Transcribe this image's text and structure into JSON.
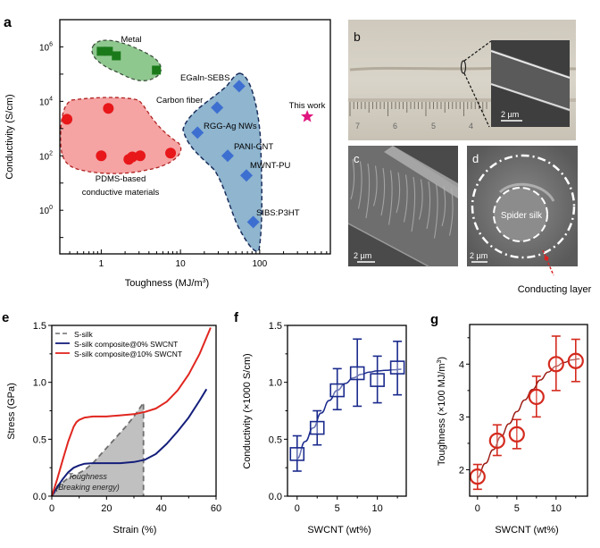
{
  "panels": {
    "a": {
      "label": "a"
    },
    "b": {
      "label": "b",
      "scale_bar": "2 µm",
      "ruler_numbers": [
        "7",
        "6",
        "5",
        "4"
      ]
    },
    "c": {
      "label": "c",
      "scale_bar": "2 µm"
    },
    "d": {
      "label": "d",
      "scale_bar": "2 µm",
      "core_label": "Spider silk",
      "callout": "Conducting layer"
    },
    "e": {
      "label": "e"
    },
    "f": {
      "label": "f"
    },
    "g": {
      "label": "g"
    }
  },
  "colors": {
    "metal": "#1a7a1a",
    "metal_fill": "#8fc88f",
    "pdms": "#e8171a",
    "pdms_fill": "#f5a3a3",
    "fiber": "#3d6fd1",
    "fiber_fill": "#8fb5cf",
    "fiber_border": "#1b2f5c",
    "star": "#e0157f",
    "s_silk": "#6e6e6e",
    "zero_swcnt": "#141e7a",
    "ten_swcnt": "#e0261f",
    "f_series": "#1a2a8c",
    "g_series": "#d42a1e",
    "toughness_fill": "#c0c0c0"
  },
  "chart_data": [
    {
      "id": "a",
      "type": "scatter",
      "xlabel": "Toughness (MJ/m3)",
      "ylabel": "Conductivity (S/cm)",
      "xscale": "log",
      "yscale": "log",
      "xlim": [
        0.3,
        780
      ],
      "ylim": [
        0.025,
        10000000.0
      ],
      "xticks": [
        1,
        10,
        100
      ],
      "xtick_labels": [
        "1",
        "10",
        "100"
      ],
      "yticks": [
        1,
        100,
        10000,
        1000000
      ],
      "ytick_labels": [
        "10^0",
        "10^2",
        "10^4",
        "10^6"
      ],
      "groups": [
        {
          "name": "Metal",
          "marker": "square",
          "points": [
            [
              1.0,
              690000
            ],
            [
              1.23,
              690000
            ],
            [
              1.55,
              470000
            ],
            [
              4.97,
              140000
            ]
          ]
        },
        {
          "name": "PDMS-based conductive materials",
          "marker": "circle",
          "points": [
            [
              0.37,
              2200
            ],
            [
              1.23,
              5500
            ],
            [
              1.0,
              100
            ],
            [
              2.23,
              74
            ],
            [
              2.47,
              91
            ],
            [
              3.1,
              100
            ],
            [
              7.5,
              126
            ]
          ]
        },
        {
          "name": "Fibers",
          "marker": "diamond",
          "points": [
            {
              "label": "EGaIn-SEBS",
              "x": 55,
              "y": 36000
            },
            {
              "label": "Carbon fiber",
              "x": 29,
              "y": 5900
            },
            {
              "label": "RGG-Ag NWs",
              "x": 16.4,
              "y": 710
            },
            {
              "label": "PANI-CNT",
              "x": 39.4,
              "y": 100
            },
            {
              "label": "MWNT-PU",
              "x": 68,
              "y": 19
            },
            {
              "label": "SIBS:P3HT",
              "x": 83,
              "y": 0.37
            }
          ]
        },
        {
          "name": "This work",
          "marker": "star",
          "points": [
            [
              398,
              2750
            ]
          ]
        }
      ],
      "annotations": [
        "Metal",
        "PDMS-based",
        "conductive materials",
        "This work"
      ]
    },
    {
      "id": "e",
      "type": "line",
      "xlabel": "Strain (%)",
      "ylabel": "Stress (GPa)",
      "xlim": [
        0,
        60
      ],
      "ylim": [
        0,
        1.5
      ],
      "xticks": [
        0,
        20,
        40,
        60
      ],
      "xtick_labels": [
        "0",
        "20",
        "40",
        "60"
      ],
      "yticks": [
        0,
        0.5,
        1.0,
        1.5
      ],
      "ytick_labels": [
        "0.0",
        "0.5",
        "1.0",
        "1.5"
      ],
      "legend_position": "top-left",
      "series": [
        {
          "name": "S-silk",
          "style": "dashed",
          "x": [
            0,
            3,
            6,
            9,
            12,
            15,
            18,
            21,
            24,
            27,
            30,
            33.5,
            33.5
          ],
          "y": [
            0,
            0.1,
            0.16,
            0.19,
            0.23,
            0.29,
            0.37,
            0.45,
            0.53,
            0.61,
            0.7,
            0.82,
            0
          ]
        },
        {
          "name": "S-silk composite@0% SWCNT",
          "style": "solid",
          "x": [
            0,
            2,
            4,
            6,
            8,
            10,
            12,
            15,
            20,
            25,
            30,
            34,
            38,
            42,
            46,
            50,
            54,
            56.5
          ],
          "y": [
            0,
            0.08,
            0.15,
            0.21,
            0.25,
            0.27,
            0.285,
            0.29,
            0.29,
            0.29,
            0.3,
            0.32,
            0.37,
            0.46,
            0.57,
            0.69,
            0.84,
            0.94
          ]
        },
        {
          "name": "S-silk composite@10% SWCNT",
          "style": "solid",
          "x": [
            0,
            2,
            4,
            6,
            8,
            9,
            10,
            12,
            15,
            20,
            25,
            30,
            34,
            38,
            42,
            46,
            50,
            54,
            58
          ],
          "y": [
            0,
            0.15,
            0.32,
            0.48,
            0.61,
            0.65,
            0.67,
            0.69,
            0.7,
            0.7,
            0.71,
            0.72,
            0.74,
            0.77,
            0.83,
            0.93,
            1.07,
            1.25,
            1.48
          ]
        }
      ],
      "shaded_region": {
        "under": "S-silk",
        "label_line1": "Toughness",
        "label_line2": "(Breaking energy)"
      }
    },
    {
      "id": "f",
      "type": "scatter",
      "xlabel": "SWCNT (wt%)",
      "ylabel": "Conductivity (×1000 S/cm)",
      "xlim": [
        -1.2,
        13.6
      ],
      "ylim": [
        0,
        1.5
      ],
      "xticks": [
        0,
        5,
        10
      ],
      "xtick_labels": [
        "0",
        "5",
        "10"
      ],
      "yticks": [
        0,
        0.5,
        1.0,
        1.5
      ],
      "ytick_labels": [
        "0.0",
        "0.5",
        "1.0",
        "1.5"
      ],
      "marker": "square",
      "x": [
        0,
        2.5,
        5,
        7.5,
        10,
        12.5
      ],
      "y": [
        0.37,
        0.6,
        0.93,
        1.08,
        1.02,
        1.13
      ],
      "err_low": [
        0.22,
        0.45,
        0.76,
        0.79,
        0.82,
        0.89
      ],
      "err_high": [
        0.53,
        0.75,
        1.12,
        1.38,
        1.23,
        1.36
      ],
      "fit": {
        "x": [
          0,
          1,
          2,
          3,
          4,
          5,
          6,
          7,
          8,
          9,
          10,
          11,
          12,
          13
        ],
        "y": [
          0.33,
          0.48,
          0.6,
          0.73,
          0.84,
          0.93,
          0.99,
          1.04,
          1.07,
          1.09,
          1.1,
          1.105,
          1.11,
          1.115
        ]
      }
    },
    {
      "id": "g",
      "type": "scatter",
      "xlabel": "SWCNT (wt%)",
      "ylabel": "Toughness (×100 MJ/m3)",
      "xlim": [
        -1.0,
        14.0
      ],
      "ylim": [
        1.5,
        4.75
      ],
      "xticks": [
        0,
        5,
        10
      ],
      "xtick_labels": [
        "0",
        "5",
        "10"
      ],
      "yticks": [
        2,
        3,
        4
      ],
      "ytick_labels": [
        "2",
        "3",
        "4"
      ],
      "marker": "circle",
      "x": [
        0,
        2.5,
        5,
        7.5,
        10,
        12.5
      ],
      "y": [
        1.87,
        2.55,
        2.67,
        3.38,
        4.0,
        4.06
      ],
      "err_low": [
        1.63,
        2.27,
        2.4,
        3.0,
        3.5,
        3.67
      ],
      "err_high": [
        2.1,
        2.85,
        2.95,
        3.77,
        4.53,
        4.47
      ],
      "fit": {
        "x": [
          0,
          1,
          2,
          3,
          4,
          5,
          6,
          7,
          8,
          9,
          10,
          11,
          12,
          13
        ],
        "y": [
          1.85,
          2.12,
          2.38,
          2.63,
          2.87,
          3.1,
          3.32,
          3.52,
          3.7,
          3.85,
          3.96,
          4.03,
          4.08,
          4.1
        ]
      }
    }
  ]
}
